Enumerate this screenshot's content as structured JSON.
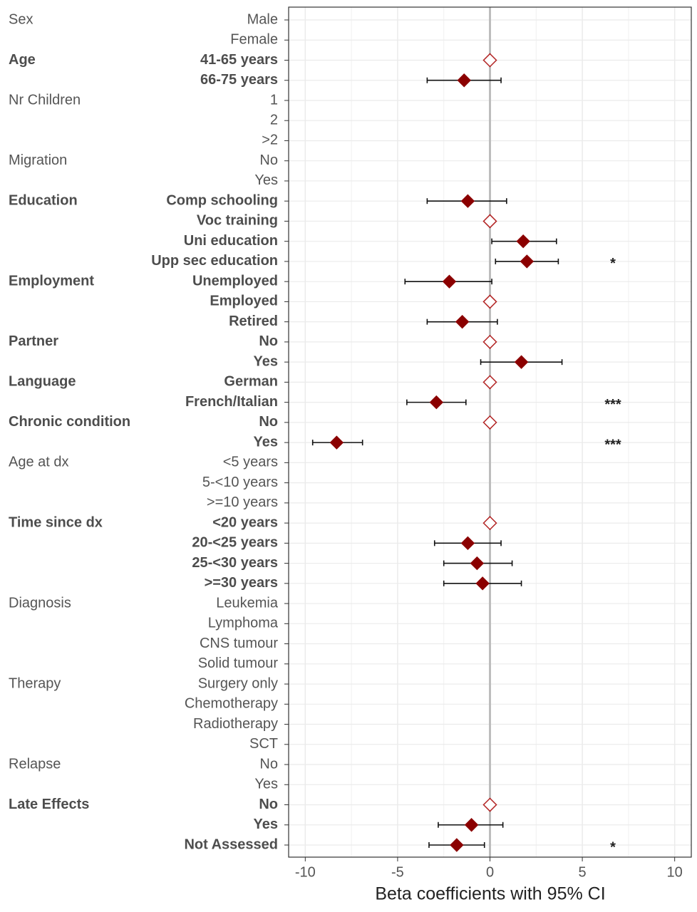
{
  "chart_data": {
    "type": "forest",
    "x_label": "Beta coefficients with 95% CI",
    "xlim": [
      -10.9,
      10.9
    ],
    "xticks": [
      -10,
      -5,
      0,
      5,
      10
    ],
    "grid": true,
    "reference_line": 0,
    "color": "#8b0000",
    "groups": [
      {
        "name": "Sex",
        "bold": false,
        "levels": [
          "Male",
          "Female"
        ],
        "estimates": [
          null,
          null
        ],
        "lower": [
          null,
          null
        ],
        "upper": [
          null,
          null
        ],
        "significance": [
          null,
          null
        ]
      },
      {
        "name": "Age",
        "bold": true,
        "levels": [
          "41-65 years",
          "66-75 years"
        ],
        "estimates": [
          0,
          -1.4
        ],
        "lower": [
          null,
          -3.4
        ],
        "upper": [
          null,
          0.6
        ],
        "significance": [
          null,
          null
        ]
      },
      {
        "name": "Nr Children",
        "bold": false,
        "levels": [
          "1",
          "2",
          ">2"
        ],
        "estimates": [
          null,
          null,
          null
        ],
        "lower": [
          null,
          null,
          null
        ],
        "upper": [
          null,
          null,
          null
        ],
        "significance": [
          null,
          null,
          null
        ]
      },
      {
        "name": "Migration",
        "bold": false,
        "levels": [
          "No",
          "Yes"
        ],
        "estimates": [
          null,
          null
        ],
        "lower": [
          null,
          null
        ],
        "upper": [
          null,
          null
        ],
        "significance": [
          null,
          null
        ]
      },
      {
        "name": "Education",
        "bold": true,
        "levels": [
          "Comp schooling",
          "Voc training",
          "Uni education",
          "Upp sec education"
        ],
        "estimates": [
          -1.2,
          0,
          1.8,
          2.0
        ],
        "lower": [
          -3.4,
          null,
          0.1,
          0.3
        ],
        "upper": [
          0.9,
          null,
          3.6,
          3.7
        ],
        "significance": [
          null,
          null,
          null,
          "*"
        ]
      },
      {
        "name": "Employment",
        "bold": true,
        "levels": [
          "Unemployed",
          "Employed",
          "Retired"
        ],
        "estimates": [
          -2.2,
          0,
          -1.5
        ],
        "lower": [
          -4.6,
          null,
          -3.4
        ],
        "upper": [
          0.1,
          null,
          0.4
        ],
        "significance": [
          null,
          null,
          null
        ]
      },
      {
        "name": "Partner",
        "bold": true,
        "levels": [
          "No",
          "Yes"
        ],
        "estimates": [
          0,
          1.7
        ],
        "lower": [
          null,
          -0.5
        ],
        "upper": [
          null,
          3.9
        ],
        "significance": [
          null,
          null
        ]
      },
      {
        "name": "Language",
        "bold": true,
        "levels": [
          "German",
          "French/Italian"
        ],
        "estimates": [
          0,
          -2.9
        ],
        "lower": [
          null,
          -4.5
        ],
        "upper": [
          null,
          -1.3
        ],
        "significance": [
          null,
          "***"
        ]
      },
      {
        "name": "Chronic condition",
        "bold": true,
        "levels": [
          "No",
          "Yes"
        ],
        "estimates": [
          0,
          -8.3
        ],
        "lower": [
          null,
          -9.6
        ],
        "upper": [
          null,
          -6.9
        ],
        "significance": [
          null,
          "***"
        ]
      },
      {
        "name": "Age at dx",
        "bold": false,
        "levels": [
          "<5 years",
          "5-<10 years",
          ">=10 years"
        ],
        "estimates": [
          null,
          null,
          null
        ],
        "lower": [
          null,
          null,
          null
        ],
        "upper": [
          null,
          null,
          null
        ],
        "significance": [
          null,
          null,
          null
        ]
      },
      {
        "name": "Time since dx",
        "bold": true,
        "levels": [
          "<20 years",
          "20-<25 years",
          "25-<30 years",
          ">=30 years"
        ],
        "estimates": [
          0,
          -1.2,
          -0.7,
          -0.4
        ],
        "lower": [
          null,
          -3.0,
          -2.5,
          -2.5
        ],
        "upper": [
          null,
          0.6,
          1.2,
          1.7
        ],
        "significance": [
          null,
          null,
          null,
          null
        ]
      },
      {
        "name": "Diagnosis",
        "bold": false,
        "levels": [
          "Leukemia",
          "Lymphoma",
          "CNS tumour",
          "Solid tumour"
        ],
        "estimates": [
          null,
          null,
          null,
          null
        ],
        "lower": [
          null,
          null,
          null,
          null
        ],
        "upper": [
          null,
          null,
          null,
          null
        ],
        "significance": [
          null,
          null,
          null,
          null
        ]
      },
      {
        "name": "Therapy",
        "bold": false,
        "levels": [
          "Surgery only",
          "Chemotherapy",
          "Radiotherapy",
          "SCT"
        ],
        "estimates": [
          null,
          null,
          null,
          null
        ],
        "lower": [
          null,
          null,
          null,
          null
        ],
        "upper": [
          null,
          null,
          null,
          null
        ],
        "significance": [
          null,
          null,
          null,
          null
        ]
      },
      {
        "name": "Relapse",
        "bold": false,
        "levels": [
          "No",
          "Yes"
        ],
        "estimates": [
          null,
          null
        ],
        "lower": [
          null,
          null
        ],
        "upper": [
          null,
          null
        ],
        "significance": [
          null,
          null
        ]
      },
      {
        "name": "Late Effects",
        "bold": true,
        "levels": [
          "No",
          "Yes",
          "Not Assessed"
        ],
        "estimates": [
          0,
          -1.0,
          -1.8
        ],
        "lower": [
          null,
          -2.8,
          -3.3
        ],
        "upper": [
          null,
          0.7,
          -0.3
        ],
        "significance": [
          null,
          null,
          "*"
        ]
      }
    ]
  }
}
